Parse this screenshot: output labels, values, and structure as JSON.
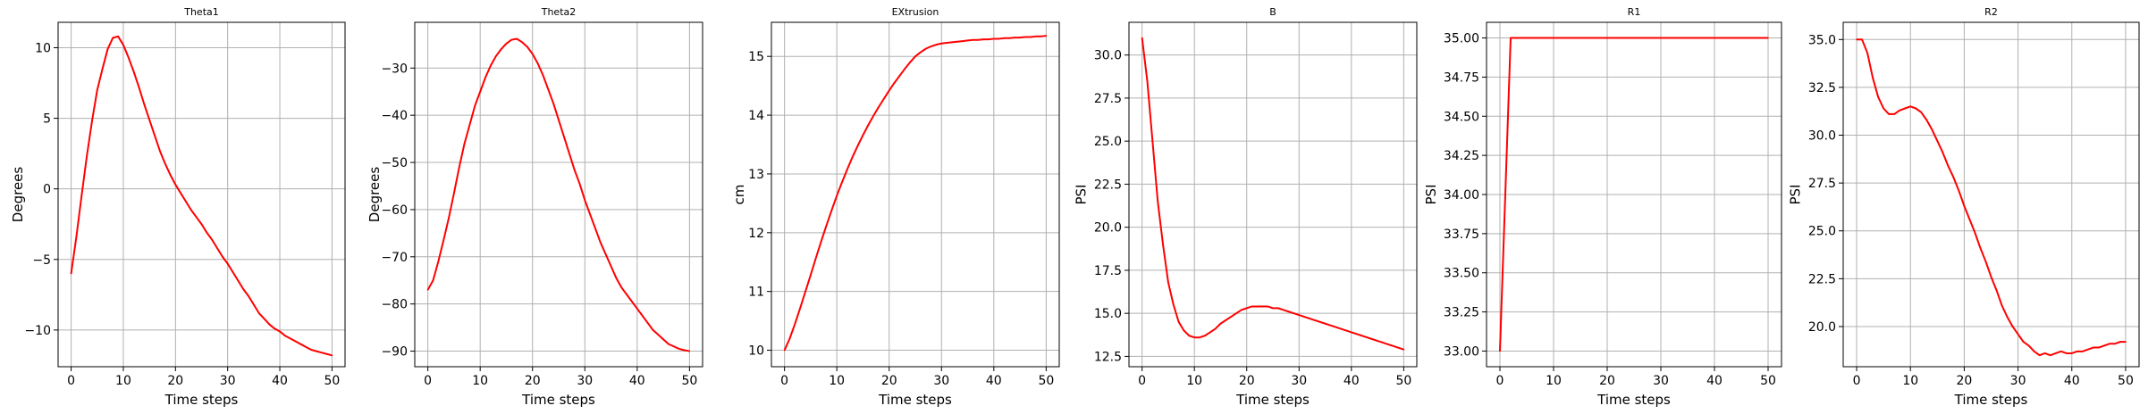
{
  "chart_data": [
    {
      "type": "line",
      "title": "Theta1",
      "xlabel": "Time steps",
      "ylabel": "Degrees",
      "xlim": [
        -2.5,
        52.5
      ],
      "ylim": [
        -12.6,
        11.8
      ],
      "xticks": [
        0,
        10,
        20,
        30,
        40,
        50
      ],
      "xtick_labels": [
        "0",
        "10",
        "20",
        "30",
        "40",
        "50"
      ],
      "yticks": [
        -10,
        -5,
        0,
        5,
        10
      ],
      "ytick_labels": [
        "−10",
        "−5",
        "0",
        "5",
        "10"
      ],
      "grid": true,
      "color": "#ff0000",
      "series": [
        {
          "x": [
            0,
            1,
            2,
            3,
            4,
            5,
            6,
            7,
            8,
            9,
            10,
            11,
            12,
            13,
            14,
            15,
            16,
            17,
            18,
            19,
            20,
            21,
            22,
            23,
            24,
            25,
            26,
            27,
            28,
            29,
            30,
            31,
            32,
            33,
            34,
            35,
            36,
            37,
            38,
            39,
            40,
            41,
            42,
            43,
            44,
            45,
            46,
            47,
            48,
            49,
            50
          ],
          "values": [
            -6.0,
            -3.4,
            -0.5,
            2.3,
            4.8,
            7.0,
            8.5,
            9.9,
            10.7,
            10.8,
            10.2,
            9.3,
            8.3,
            7.2,
            6.0,
            4.9,
            3.8,
            2.7,
            1.8,
            1.0,
            0.3,
            -0.3,
            -0.9,
            -1.5,
            -2.0,
            -2.5,
            -3.1,
            -3.6,
            -4.2,
            -4.8,
            -5.3,
            -5.9,
            -6.5,
            -7.1,
            -7.6,
            -8.2,
            -8.8,
            -9.2,
            -9.6,
            -9.9,
            -10.1,
            -10.4,
            -10.6,
            -10.8,
            -11.0,
            -11.2,
            -11.4,
            -11.5,
            -11.6,
            -11.7,
            -11.8
          ]
        }
      ]
    },
    {
      "type": "line",
      "title": "Theta2",
      "xlabel": "Time steps",
      "ylabel": "Degrees",
      "xlim": [
        -2.5,
        52.5
      ],
      "ylim": [
        -93.3,
        -20.3
      ],
      "xticks": [
        0,
        10,
        20,
        30,
        40,
        50
      ],
      "xtick_labels": [
        "0",
        "10",
        "20",
        "30",
        "40",
        "50"
      ],
      "yticks": [
        -90,
        -80,
        -70,
        -60,
        -50,
        -40,
        -30
      ],
      "ytick_labels": [
        "−90",
        "−80",
        "−70",
        "−60",
        "−50",
        "−40",
        "−30"
      ],
      "grid": true,
      "color": "#ff0000",
      "series": [
        {
          "x": [
            0,
            1,
            2,
            3,
            4,
            5,
            6,
            7,
            8,
            9,
            10,
            11,
            12,
            13,
            14,
            15,
            16,
            17,
            18,
            19,
            20,
            21,
            22,
            23,
            24,
            25,
            26,
            27,
            28,
            29,
            30,
            31,
            32,
            33,
            34,
            35,
            36,
            37,
            38,
            39,
            40,
            41,
            42,
            43,
            44,
            45,
            46,
            47,
            48,
            49,
            50
          ],
          "values": [
            -77.0,
            -75.0,
            -71.0,
            -66.5,
            -61.8,
            -56.5,
            -51.0,
            -46.0,
            -42.0,
            -38.0,
            -35.0,
            -32.0,
            -29.5,
            -27.5,
            -26.0,
            -24.8,
            -24.0,
            -23.8,
            -24.5,
            -25.5,
            -27.0,
            -29.0,
            -31.5,
            -34.5,
            -37.5,
            -41.0,
            -44.5,
            -48.0,
            -51.5,
            -54.5,
            -58.0,
            -61.0,
            -64.0,
            -67.0,
            -69.5,
            -72.0,
            -74.5,
            -76.5,
            -78.0,
            -79.5,
            -81.0,
            -82.5,
            -84.0,
            -85.5,
            -86.5,
            -87.5,
            -88.5,
            -89.0,
            -89.5,
            -89.8,
            -90.0
          ]
        }
      ]
    },
    {
      "type": "line",
      "title": "EXtrusion",
      "xlabel": "Time steps",
      "ylabel": "cm",
      "xlim": [
        -2.5,
        52.5
      ],
      "ylim": [
        9.72,
        15.58
      ],
      "xticks": [
        0,
        10,
        20,
        30,
        40,
        50
      ],
      "xtick_labels": [
        "0",
        "10",
        "20",
        "30",
        "40",
        "50"
      ],
      "yticks": [
        10,
        11,
        12,
        13,
        14,
        15
      ],
      "ytick_labels": [
        "10",
        "11",
        "12",
        "13",
        "14",
        "15"
      ],
      "grid": true,
      "color": "#ff0000",
      "series": [
        {
          "x": [
            0,
            1,
            2,
            3,
            4,
            5,
            6,
            7,
            8,
            9,
            10,
            11,
            12,
            13,
            14,
            15,
            16,
            17,
            18,
            19,
            20,
            21,
            22,
            23,
            24,
            25,
            26,
            27,
            28,
            29,
            30,
            31,
            32,
            33,
            34,
            35,
            36,
            37,
            38,
            39,
            40,
            41,
            42,
            43,
            44,
            45,
            46,
            47,
            48,
            49,
            50
          ],
          "values": [
            10.0,
            10.2,
            10.45,
            10.72,
            11.0,
            11.28,
            11.57,
            11.85,
            12.12,
            12.38,
            12.63,
            12.86,
            13.08,
            13.29,
            13.48,
            13.66,
            13.83,
            13.99,
            14.14,
            14.28,
            14.42,
            14.55,
            14.67,
            14.79,
            14.9,
            15.0,
            15.07,
            15.13,
            15.17,
            15.2,
            15.22,
            15.23,
            15.24,
            15.25,
            15.26,
            15.27,
            15.28,
            15.28,
            15.29,
            15.29,
            15.3,
            15.3,
            15.31,
            15.31,
            15.32,
            15.32,
            15.33,
            15.33,
            15.34,
            15.34,
            15.35
          ]
        }
      ]
    },
    {
      "type": "line",
      "title": "B",
      "xlabel": "Time steps",
      "ylabel": "PSI",
      "xlim": [
        -2.5,
        52.5
      ],
      "ylim": [
        11.9,
        31.9
      ],
      "xticks": [
        0,
        10,
        20,
        30,
        40,
        50
      ],
      "xtick_labels": [
        "0",
        "10",
        "20",
        "30",
        "40",
        "50"
      ],
      "yticks": [
        12.5,
        15.0,
        17.5,
        20.0,
        22.5,
        25.0,
        27.5,
        30.0
      ],
      "ytick_labels": [
        "12.5",
        "15.0",
        "17.5",
        "20.0",
        "22.5",
        "25.0",
        "27.5",
        "30.0"
      ],
      "grid": true,
      "color": "#ff0000",
      "series": [
        {
          "x": [
            0,
            1,
            2,
            3,
            4,
            5,
            6,
            7,
            8,
            9,
            10,
            11,
            12,
            13,
            14,
            15,
            16,
            17,
            18,
            19,
            20,
            21,
            22,
            23,
            24,
            25,
            26,
            27,
            28,
            29,
            30,
            31,
            32,
            33,
            34,
            35,
            36,
            37,
            38,
            39,
            40,
            41,
            42,
            43,
            44,
            45,
            46,
            47,
            48,
            49,
            50
          ],
          "values": [
            31.0,
            28.5,
            25.0,
            21.5,
            19.0,
            16.8,
            15.5,
            14.5,
            14.0,
            13.7,
            13.6,
            13.6,
            13.7,
            13.9,
            14.1,
            14.4,
            14.6,
            14.8,
            15.0,
            15.2,
            15.3,
            15.4,
            15.4,
            15.4,
            15.4,
            15.3,
            15.3,
            15.2,
            15.1,
            15.0,
            14.9,
            14.8,
            14.7,
            14.6,
            14.5,
            14.4,
            14.3,
            14.2,
            14.1,
            14.0,
            13.9,
            13.8,
            13.7,
            13.6,
            13.5,
            13.4,
            13.3,
            13.2,
            13.1,
            13.0,
            12.9
          ]
        }
      ]
    },
    {
      "type": "line",
      "title": "R1",
      "xlabel": "Time steps",
      "ylabel": "PSI",
      "xlim": [
        -2.5,
        52.5
      ],
      "ylim": [
        32.9,
        35.1
      ],
      "xticks": [
        0,
        10,
        20,
        30,
        40,
        50
      ],
      "xtick_labels": [
        "0",
        "10",
        "20",
        "30",
        "40",
        "50"
      ],
      "yticks": [
        33.0,
        33.25,
        33.5,
        33.75,
        34.0,
        34.25,
        34.5,
        34.75,
        35.0
      ],
      "ytick_labels": [
        "33.00",
        "33.25",
        "33.50",
        "33.75",
        "34.00",
        "34.25",
        "34.50",
        "34.75",
        "35.00"
      ],
      "grid": true,
      "color": "#ff0000",
      "series": [
        {
          "x": [
            0,
            2,
            3,
            10,
            20,
            30,
            40,
            50
          ],
          "values": [
            33.0,
            35.0,
            35.0,
            35.0,
            35.0,
            35.0,
            35.0,
            35.0
          ]
        }
      ]
    },
    {
      "type": "line",
      "title": "R2",
      "xlabel": "Time steps",
      "ylabel": "PSI",
      "xlim": [
        -2.5,
        52.5
      ],
      "ylim": [
        17.9,
        35.9
      ],
      "xticks": [
        0,
        10,
        20,
        30,
        40,
        50
      ],
      "xtick_labels": [
        "0",
        "10",
        "20",
        "30",
        "40",
        "50"
      ],
      "yticks": [
        20.0,
        22.5,
        25.0,
        27.5,
        30.0,
        32.5,
        35.0
      ],
      "ytick_labels": [
        "20.0",
        "22.5",
        "25.0",
        "27.5",
        "30.0",
        "32.5",
        "35.0"
      ],
      "grid": true,
      "color": "#ff0000",
      "series": [
        {
          "x": [
            0,
            1,
            2,
            3,
            4,
            5,
            6,
            7,
            8,
            9,
            10,
            11,
            12,
            13,
            14,
            15,
            16,
            17,
            18,
            19,
            20,
            21,
            22,
            23,
            24,
            25,
            26,
            27,
            28,
            29,
            30,
            31,
            32,
            33,
            34,
            35,
            36,
            37,
            38,
            39,
            40,
            41,
            42,
            43,
            44,
            45,
            46,
            47,
            48,
            49,
            50
          ],
          "values": [
            35.0,
            35.0,
            34.3,
            33.0,
            32.0,
            31.4,
            31.1,
            31.1,
            31.3,
            31.4,
            31.5,
            31.4,
            31.2,
            30.8,
            30.3,
            29.7,
            29.1,
            28.4,
            27.8,
            27.1,
            26.3,
            25.6,
            24.9,
            24.1,
            23.4,
            22.6,
            21.9,
            21.1,
            20.5,
            20.0,
            19.6,
            19.2,
            19.0,
            18.7,
            18.5,
            18.6,
            18.5,
            18.6,
            18.7,
            18.6,
            18.6,
            18.7,
            18.7,
            18.8,
            18.9,
            18.9,
            19.0,
            19.1,
            19.1,
            19.2,
            19.2
          ]
        }
      ]
    }
  ]
}
